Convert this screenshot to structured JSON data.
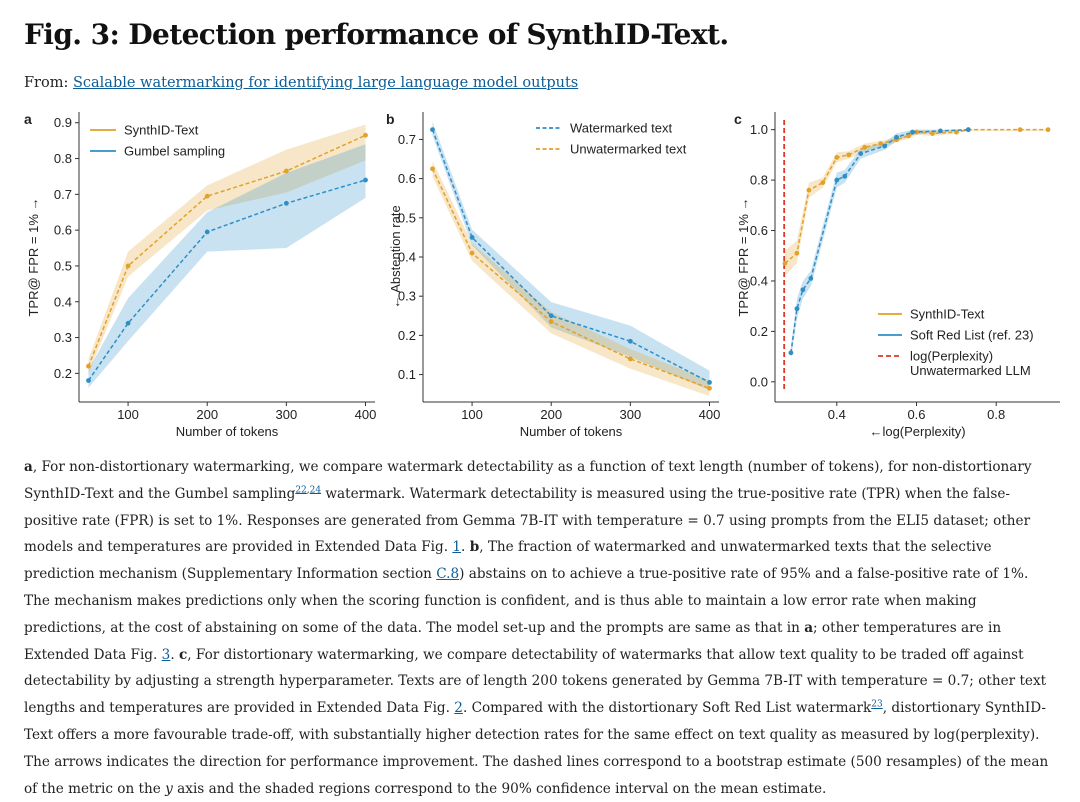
{
  "page": {
    "title": "Fig. 3: Detection performance of SynthID-Text.",
    "from_label": "From:",
    "from_link": "Scalable watermarking for identifying large language model outputs"
  },
  "colors": {
    "orange": "#e2a12a",
    "blue": "#2e8fc7",
    "red": "#d93a2b"
  },
  "chart_data": [
    {
      "panel": "a",
      "type": "line",
      "xlabel": "Number of tokens",
      "ylabel": "TPR@ FPR = 1% →",
      "xlim": [
        38,
        412
      ],
      "ylim": [
        0.12,
        0.93
      ],
      "xticks": [
        100,
        200,
        300,
        400
      ],
      "yticks": [
        0.2,
        0.3,
        0.4,
        0.5,
        0.6,
        0.7,
        0.8,
        0.9
      ],
      "legend": "top-left",
      "x": [
        50,
        100,
        200,
        300,
        400
      ],
      "series": [
        {
          "name": "SynthID-Text",
          "color": "orange",
          "values": [
            0.22,
            0.5,
            0.695,
            0.765,
            0.865
          ],
          "lower": [
            0.2,
            0.47,
            0.655,
            0.705,
            0.795
          ],
          "upper": [
            0.24,
            0.54,
            0.725,
            0.825,
            0.895
          ]
        },
        {
          "name": "Gumbel sampling",
          "color": "blue",
          "values": [
            0.18,
            0.34,
            0.595,
            0.675,
            0.74
          ],
          "lower": [
            0.16,
            0.29,
            0.54,
            0.55,
            0.69
          ],
          "upper": [
            0.21,
            0.41,
            0.65,
            0.76,
            0.84
          ]
        }
      ]
    },
    {
      "panel": "b",
      "type": "line",
      "xlabel": "Number of tokens",
      "ylabel": "← Abstention rate",
      "xlim": [
        38,
        412
      ],
      "ylim": [
        0.03,
        0.77
      ],
      "xticks": [
        100,
        200,
        300,
        400
      ],
      "yticks": [
        0.1,
        0.2,
        0.3,
        0.4,
        0.5,
        0.6,
        0.7
      ],
      "legend": "top-right",
      "x": [
        50,
        100,
        200,
        300,
        400
      ],
      "series": [
        {
          "name": "Watermarked text",
          "color": "blue",
          "values": [
            0.725,
            0.45,
            0.25,
            0.185,
            0.08
          ],
          "lower": [
            0.71,
            0.43,
            0.22,
            0.145,
            0.06
          ],
          "upper": [
            0.745,
            0.47,
            0.285,
            0.225,
            0.11
          ]
        },
        {
          "name": "Unwatermarked text",
          "color": "orange",
          "values": [
            0.625,
            0.41,
            0.235,
            0.14,
            0.065
          ],
          "lower": [
            0.605,
            0.39,
            0.205,
            0.115,
            0.045
          ],
          "upper": [
            0.645,
            0.435,
            0.26,
            0.165,
            0.085
          ]
        }
      ]
    },
    {
      "panel": "c",
      "type": "line",
      "xlabel": "←log(Perplexity)",
      "ylabel": "TPR@ FPR = 1% →",
      "xlim": [
        0.245,
        0.96
      ],
      "ylim": [
        -0.08,
        1.07
      ],
      "xticks": [
        0.4,
        0.6,
        0.8
      ],
      "yticks": [
        0.0,
        0.2,
        0.4,
        0.6,
        0.8,
        1.0
      ],
      "legend": "bottom-right",
      "series": [
        {
          "name": "SynthID-Text",
          "color": "orange",
          "x": [
            0.27,
            0.3,
            0.33,
            0.365,
            0.4,
            0.43,
            0.47,
            0.51,
            0.55,
            0.58,
            0.6,
            0.64,
            0.7,
            0.73,
            0.86,
            0.93
          ],
          "values": [
            0.47,
            0.51,
            0.76,
            0.79,
            0.89,
            0.9,
            0.93,
            0.945,
            0.96,
            0.975,
            0.99,
            0.985,
            0.99,
            1.0,
            1.0,
            1.0
          ],
          "lower": [
            0.42,
            0.47,
            0.73,
            0.77,
            0.87,
            0.885,
            0.915,
            0.93,
            0.95,
            0.965,
            0.98,
            0.975,
            0.985,
            0.995,
            0.995,
            0.995
          ],
          "upper": [
            0.52,
            0.56,
            0.79,
            0.81,
            0.91,
            0.915,
            0.945,
            0.955,
            0.97,
            0.985,
            1.0,
            0.995,
            1.0,
            1.0,
            1.0,
            1.0
          ]
        },
        {
          "name": "Soft Red List (ref. 23)",
          "color": "blue",
          "x": [
            0.285,
            0.3,
            0.315,
            0.335,
            0.4,
            0.42,
            0.46,
            0.52,
            0.55,
            0.59,
            0.66,
            0.73
          ],
          "values": [
            0.115,
            0.29,
            0.365,
            0.41,
            0.8,
            0.815,
            0.905,
            0.935,
            0.97,
            0.99,
            0.995,
            1.0
          ],
          "lower": [
            0.09,
            0.25,
            0.33,
            0.38,
            0.77,
            0.79,
            0.885,
            0.92,
            0.955,
            0.98,
            0.99,
            0.995
          ],
          "upper": [
            0.14,
            0.33,
            0.4,
            0.44,
            0.83,
            0.84,
            0.925,
            0.95,
            0.985,
            1.0,
            1.0,
            1.0
          ]
        }
      ],
      "reference_line": {
        "name": "log(Perplexity)",
        "name_line2": "Unwatermarked LLM",
        "x": 0.268,
        "color": "red"
      }
    }
  ],
  "caption": {
    "t01": "For non-distortionary watermarking, we compare watermark detectability as a function of text length (number of tokens), for non-distortionary SynthID-Text and the Gumbel sampling",
    "ref_a": "22",
    "ref_b": "24",
    "t02": "watermark. Watermark detectability is measured using the true-positive rate (TPR) when the false-positive rate (FPR) is set to 1%. Responses are generated from Gemma 7B-IT with temperature = 0.7 using prompts from the ELI5 dataset; other models and temperatures are provided in Extended Data Fig.",
    "link_fig1": "1",
    "t03": "The fraction of watermarked and unwatermarked texts that the selective prediction mechanism (Supplementary Information section",
    "link_c8": "C.8",
    "t04": ") abstains on to achieve a true-positive rate of 95% and a false-positive rate of 1%. The mechanism makes predictions only when the scoring function is confident, and is thus able to maintain a low error rate when making predictions, at the cost of abstaining on some of the data. The model set-up and the prompts are same as that in",
    "t05": "; other temperatures are in Extended Data Fig.",
    "link_fig3": "3",
    "t06": "For distortionary watermarking, we compare detectability of watermarks that allow text quality to be traded off against detectability by adjusting a strength hyperparameter. Texts are of length 200 tokens generated by Gemma 7B-IT with temperature = 0.7; other text lengths and temperatures are provided in Extended Data Fig.",
    "link_fig2": "2",
    "t07": "Compared with the distortionary Soft Red List watermark",
    "ref_c": "23",
    "t08": ", distortionary SynthID-Text offers a more favourable trade-off, with substantially higher detection rates for the same effect on text quality as measured by log(perplexity). The arrows indicates the direction for performance improvement. The dashed lines correspond to a bootstrap estimate (500 resamples) of the mean of the metric on the",
    "y_italic": "y",
    "t09": "axis and the shaded regions correspond to the 90% confidence interval on the mean estimate."
  }
}
